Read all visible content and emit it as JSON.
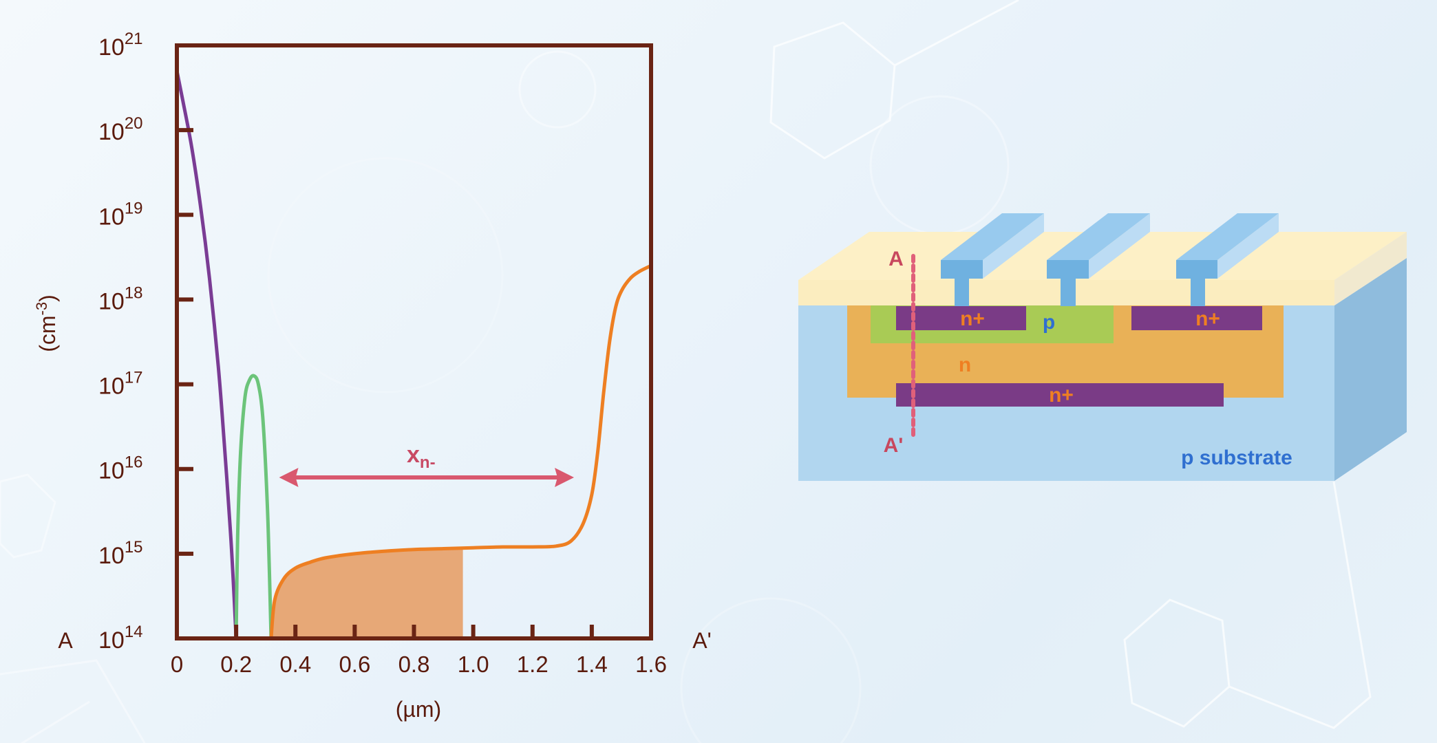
{
  "colors": {
    "axis": "#6a2414",
    "text": "#5a1a0c",
    "purple_curve": "#7a3c94",
    "green_curve": "#6cc47a",
    "orange_curve": "#ee7f22",
    "orange_fill": "#e7a877",
    "arrow": "#d9586e",
    "substrate_front": "#b1d6ef",
    "substrate_side": "#8fbcdd",
    "oxide": "#fbedbf",
    "oxide_top": "#fdf0c6",
    "n_well": "#e9b157",
    "p_region": "#a9cb55",
    "n_plus": "#7a3b86",
    "metal_front": "#6fb1e0",
    "metal_top": "#98caee",
    "metal_side": "#bcdcf4",
    "label_orange": "#ef7f22",
    "label_blue": "#2f6fd0",
    "section_line": "#e0607a"
  },
  "chart_data": {
    "type": "line",
    "title": "",
    "xlabel": "(µm)",
    "ylabel": "(cm⁻³)",
    "yscale": "log",
    "xlim": [
      0,
      1.6
    ],
    "ylim": [
      100000000000000.0,
      1e+21
    ],
    "x_ticks": [
      "0",
      "0.2",
      "0.4",
      "0.6",
      "0.8",
      "1.0",
      "1.2",
      "1.4",
      "1.6"
    ],
    "y_ticks": [
      {
        "base": "10",
        "exp": "14"
      },
      {
        "base": "10",
        "exp": "15"
      },
      {
        "base": "10",
        "exp": "16"
      },
      {
        "base": "10",
        "exp": "17"
      },
      {
        "base": "10",
        "exp": "18"
      },
      {
        "base": "10",
        "exp": "19"
      },
      {
        "base": "10",
        "exp": "20"
      },
      {
        "base": "10",
        "exp": "21"
      }
    ],
    "grid": false,
    "left_endpoint_label": "A",
    "right_endpoint_label": "A'",
    "series": [
      {
        "name": "n+ surface (purple)",
        "color": "#7a3c94",
        "x": [
          0.0,
          0.02,
          0.05,
          0.08,
          0.11,
          0.14,
          0.16,
          0.18,
          0.19,
          0.2
        ],
        "log10_y": [
          20.7,
          20.35,
          19.8,
          19.1,
          18.25,
          17.2,
          16.3,
          15.3,
          14.7,
          14.0
        ]
      },
      {
        "name": "p region (green)",
        "color": "#6cc47a",
        "x": [
          0.2,
          0.205,
          0.215,
          0.23,
          0.245,
          0.26,
          0.275,
          0.29,
          0.305,
          0.312,
          0.318
        ],
        "log10_y": [
          14.0,
          15.2,
          16.2,
          16.85,
          17.05,
          17.1,
          17.0,
          16.6,
          15.6,
          14.8,
          14.0
        ]
      },
      {
        "name": "n region (orange)",
        "color": "#ee7f22",
        "x": [
          0.318,
          0.33,
          0.36,
          0.4,
          0.45,
          0.5,
          0.6,
          0.7,
          0.8,
          0.9,
          1.0,
          1.1,
          1.2,
          1.28,
          1.33,
          1.37,
          1.4,
          1.42,
          1.44,
          1.46,
          1.48,
          1.5,
          1.53,
          1.56,
          1.6
        ],
        "log10_y": [
          14.0,
          14.45,
          14.7,
          14.83,
          14.9,
          14.95,
          15.0,
          15.03,
          15.05,
          15.06,
          15.07,
          15.08,
          15.08,
          15.09,
          15.15,
          15.35,
          15.7,
          16.2,
          16.9,
          17.5,
          17.9,
          18.1,
          18.25,
          18.33,
          18.4
        ]
      }
    ],
    "shaded_region": {
      "x_start": 0.318,
      "x_end": 0.965,
      "color": "#e7a877",
      "follows": "n region (orange)"
    },
    "annotation": {
      "label": "x",
      "subscript": "n-",
      "arrow_x_start": 0.345,
      "arrow_x_end": 1.34,
      "arrow_log10_y": 15.9
    }
  },
  "diagram": {
    "section_top_label": "A",
    "section_bottom_label": "A'",
    "labels": {
      "n_plus_top_left": "n+",
      "p_region": "p",
      "n_plus_top_right": "n+",
      "n_well": "n",
      "n_plus_buried": "n+",
      "substrate": "p substrate"
    }
  }
}
